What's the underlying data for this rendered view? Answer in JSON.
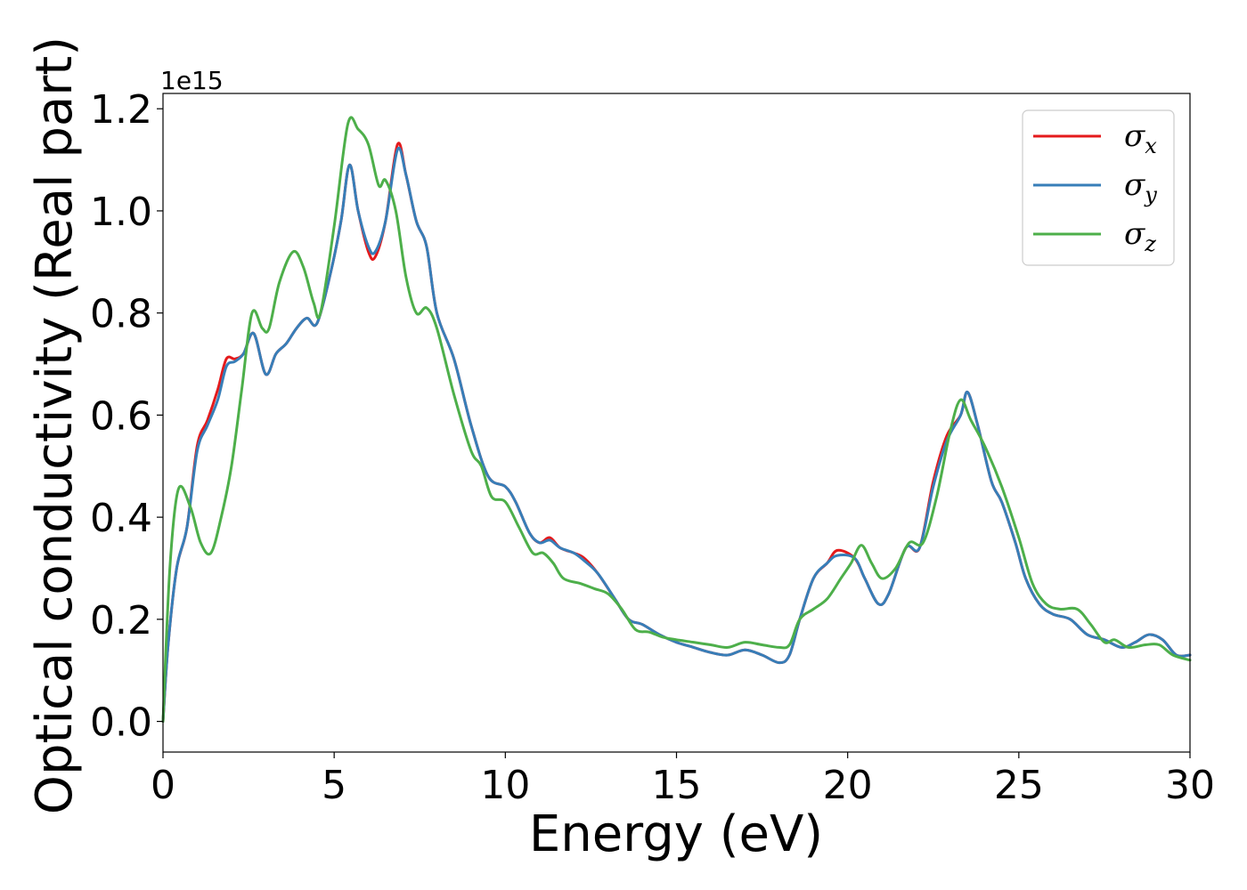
{
  "chart_data": {
    "type": "line",
    "xlabel": "Energy (eV)",
    "ylabel": "Optical conductivity (Real part)",
    "y_offset_text": "1e15",
    "xlim": [
      0,
      30
    ],
    "ylim": [
      -0.06,
      1.23
    ],
    "y_scale_factor": 1000000000000000.0,
    "xticks": [
      0,
      5,
      10,
      15,
      20,
      25,
      30
    ],
    "xtick_labels": [
      "0",
      "5",
      "10",
      "15",
      "20",
      "25",
      "30"
    ],
    "yticks": [
      0.0,
      0.2,
      0.4,
      0.6,
      0.8,
      1.0,
      1.2
    ],
    "ytick_labels": [
      "0.0",
      "0.2",
      "0.4",
      "0.6",
      "0.8",
      "1.0",
      "1.2"
    ],
    "grid": false,
    "legend_position": "top-right",
    "series": [
      {
        "name": "σx",
        "legend_base": "σ",
        "legend_sub": "x",
        "color": "#e41a1c",
        "points": [
          [
            0,
            0.0
          ],
          [
            0.15,
            0.15
          ],
          [
            0.4,
            0.3
          ],
          [
            0.7,
            0.38
          ],
          [
            1.0,
            0.54
          ],
          [
            1.3,
            0.59
          ],
          [
            1.6,
            0.65
          ],
          [
            1.85,
            0.71
          ],
          [
            2.1,
            0.71
          ],
          [
            2.35,
            0.72
          ],
          [
            2.65,
            0.76
          ],
          [
            3.0,
            0.68
          ],
          [
            3.3,
            0.72
          ],
          [
            3.6,
            0.74
          ],
          [
            3.9,
            0.77
          ],
          [
            4.2,
            0.79
          ],
          [
            4.5,
            0.78
          ],
          [
            4.9,
            0.88
          ],
          [
            5.2,
            0.98
          ],
          [
            5.45,
            1.09
          ],
          [
            5.7,
            1.0
          ],
          [
            6.0,
            0.92
          ],
          [
            6.2,
            0.91
          ],
          [
            6.5,
            0.98
          ],
          [
            6.85,
            1.13
          ],
          [
            7.1,
            1.07
          ],
          [
            7.4,
            0.98
          ],
          [
            7.7,
            0.93
          ],
          [
            8.0,
            0.8
          ],
          [
            8.5,
            0.71
          ],
          [
            9.0,
            0.58
          ],
          [
            9.5,
            0.48
          ],
          [
            10.0,
            0.46
          ],
          [
            10.3,
            0.43
          ],
          [
            10.7,
            0.37
          ],
          [
            11.0,
            0.35
          ],
          [
            11.3,
            0.36
          ],
          [
            11.6,
            0.34
          ],
          [
            12.0,
            0.33
          ],
          [
            12.3,
            0.32
          ],
          [
            12.7,
            0.29
          ],
          [
            13.2,
            0.24
          ],
          [
            13.6,
            0.2
          ],
          [
            14.0,
            0.19
          ],
          [
            14.5,
            0.17
          ],
          [
            15.0,
            0.155
          ],
          [
            15.5,
            0.145
          ],
          [
            16.0,
            0.135
          ],
          [
            16.5,
            0.13
          ],
          [
            17.0,
            0.14
          ],
          [
            17.5,
            0.13
          ],
          [
            18.0,
            0.115
          ],
          [
            18.3,
            0.13
          ],
          [
            18.6,
            0.2
          ],
          [
            19.0,
            0.28
          ],
          [
            19.4,
            0.31
          ],
          [
            19.7,
            0.335
          ],
          [
            20.2,
            0.32
          ],
          [
            20.5,
            0.28
          ],
          [
            20.9,
            0.23
          ],
          [
            21.2,
            0.25
          ],
          [
            21.7,
            0.34
          ],
          [
            22.1,
            0.34
          ],
          [
            22.5,
            0.47
          ],
          [
            22.9,
            0.56
          ],
          [
            23.3,
            0.6
          ],
          [
            23.5,
            0.645
          ],
          [
            23.8,
            0.58
          ],
          [
            24.2,
            0.47
          ],
          [
            24.5,
            0.43
          ],
          [
            24.9,
            0.35
          ],
          [
            25.2,
            0.28
          ],
          [
            25.6,
            0.23
          ],
          [
            26.0,
            0.21
          ],
          [
            26.5,
            0.2
          ],
          [
            27.0,
            0.17
          ],
          [
            27.5,
            0.16
          ],
          [
            28.0,
            0.145
          ],
          [
            28.4,
            0.155
          ],
          [
            28.8,
            0.17
          ],
          [
            29.2,
            0.16
          ],
          [
            29.6,
            0.13
          ],
          [
            30.0,
            0.13
          ]
        ]
      },
      {
        "name": "σy",
        "legend_base": "σ",
        "legend_sub": "y",
        "color": "#377eb8",
        "points": [
          [
            0,
            0.0
          ],
          [
            0.15,
            0.15
          ],
          [
            0.4,
            0.3
          ],
          [
            0.7,
            0.38
          ],
          [
            1.0,
            0.53
          ],
          [
            1.3,
            0.58
          ],
          [
            1.6,
            0.63
          ],
          [
            1.85,
            0.695
          ],
          [
            2.1,
            0.705
          ],
          [
            2.35,
            0.72
          ],
          [
            2.65,
            0.76
          ],
          [
            3.0,
            0.68
          ],
          [
            3.3,
            0.72
          ],
          [
            3.6,
            0.74
          ],
          [
            3.9,
            0.77
          ],
          [
            4.2,
            0.79
          ],
          [
            4.5,
            0.78
          ],
          [
            4.9,
            0.88
          ],
          [
            5.2,
            0.98
          ],
          [
            5.45,
            1.09
          ],
          [
            5.7,
            1.0
          ],
          [
            6.0,
            0.93
          ],
          [
            6.2,
            0.92
          ],
          [
            6.5,
            0.98
          ],
          [
            6.85,
            1.12
          ],
          [
            7.1,
            1.07
          ],
          [
            7.4,
            0.98
          ],
          [
            7.7,
            0.93
          ],
          [
            8.0,
            0.8
          ],
          [
            8.5,
            0.71
          ],
          [
            9.0,
            0.58
          ],
          [
            9.5,
            0.48
          ],
          [
            10.0,
            0.46
          ],
          [
            10.3,
            0.43
          ],
          [
            10.7,
            0.37
          ],
          [
            11.0,
            0.35
          ],
          [
            11.3,
            0.355
          ],
          [
            11.6,
            0.34
          ],
          [
            12.0,
            0.33
          ],
          [
            12.3,
            0.315
          ],
          [
            12.7,
            0.29
          ],
          [
            13.2,
            0.24
          ],
          [
            13.6,
            0.2
          ],
          [
            14.0,
            0.19
          ],
          [
            14.5,
            0.17
          ],
          [
            15.0,
            0.155
          ],
          [
            15.5,
            0.145
          ],
          [
            16.0,
            0.135
          ],
          [
            16.5,
            0.13
          ],
          [
            17.0,
            0.14
          ],
          [
            17.5,
            0.13
          ],
          [
            18.0,
            0.115
          ],
          [
            18.3,
            0.13
          ],
          [
            18.6,
            0.2
          ],
          [
            19.0,
            0.28
          ],
          [
            19.4,
            0.31
          ],
          [
            19.7,
            0.325
          ],
          [
            20.2,
            0.32
          ],
          [
            20.5,
            0.28
          ],
          [
            20.9,
            0.23
          ],
          [
            21.2,
            0.25
          ],
          [
            21.7,
            0.34
          ],
          [
            22.1,
            0.34
          ],
          [
            22.5,
            0.46
          ],
          [
            22.9,
            0.55
          ],
          [
            23.3,
            0.6
          ],
          [
            23.5,
            0.645
          ],
          [
            23.8,
            0.58
          ],
          [
            24.2,
            0.47
          ],
          [
            24.5,
            0.43
          ],
          [
            24.9,
            0.35
          ],
          [
            25.2,
            0.28
          ],
          [
            25.6,
            0.23
          ],
          [
            26.0,
            0.21
          ],
          [
            26.5,
            0.2
          ],
          [
            27.0,
            0.17
          ],
          [
            27.5,
            0.16
          ],
          [
            28.0,
            0.145
          ],
          [
            28.4,
            0.155
          ],
          [
            28.8,
            0.17
          ],
          [
            29.2,
            0.16
          ],
          [
            29.6,
            0.13
          ],
          [
            30.0,
            0.13
          ]
        ]
      },
      {
        "name": "σz",
        "legend_base": "σ",
        "legend_sub": "z",
        "color": "#4daf4a",
        "points": [
          [
            0,
            0.0
          ],
          [
            0.2,
            0.3
          ],
          [
            0.45,
            0.455
          ],
          [
            0.8,
            0.42
          ],
          [
            1.1,
            0.35
          ],
          [
            1.4,
            0.33
          ],
          [
            1.7,
            0.4
          ],
          [
            2.0,
            0.5
          ],
          [
            2.3,
            0.65
          ],
          [
            2.6,
            0.8
          ],
          [
            2.9,
            0.77
          ],
          [
            3.1,
            0.77
          ],
          [
            3.4,
            0.86
          ],
          [
            3.8,
            0.92
          ],
          [
            4.1,
            0.89
          ],
          [
            4.4,
            0.82
          ],
          [
            4.6,
            0.8
          ],
          [
            5.0,
            0.97
          ],
          [
            5.4,
            1.17
          ],
          [
            5.7,
            1.16
          ],
          [
            6.0,
            1.13
          ],
          [
            6.3,
            1.05
          ],
          [
            6.5,
            1.06
          ],
          [
            6.8,
            1.0
          ],
          [
            7.1,
            0.87
          ],
          [
            7.4,
            0.8
          ],
          [
            7.7,
            0.81
          ],
          [
            8.0,
            0.77
          ],
          [
            8.5,
            0.64
          ],
          [
            9.0,
            0.53
          ],
          [
            9.3,
            0.5
          ],
          [
            9.6,
            0.44
          ],
          [
            10.0,
            0.43
          ],
          [
            10.4,
            0.38
          ],
          [
            10.8,
            0.33
          ],
          [
            11.1,
            0.33
          ],
          [
            11.4,
            0.31
          ],
          [
            11.7,
            0.28
          ],
          [
            12.2,
            0.27
          ],
          [
            12.6,
            0.26
          ],
          [
            13.0,
            0.25
          ],
          [
            13.4,
            0.22
          ],
          [
            13.8,
            0.18
          ],
          [
            14.2,
            0.175
          ],
          [
            14.6,
            0.165
          ],
          [
            15.0,
            0.16
          ],
          [
            15.5,
            0.155
          ],
          [
            16.0,
            0.15
          ],
          [
            16.5,
            0.145
          ],
          [
            17.0,
            0.155
          ],
          [
            17.5,
            0.15
          ],
          [
            18.0,
            0.145
          ],
          [
            18.3,
            0.15
          ],
          [
            18.6,
            0.2
          ],
          [
            19.0,
            0.22
          ],
          [
            19.4,
            0.24
          ],
          [
            19.8,
            0.28
          ],
          [
            20.1,
            0.31
          ],
          [
            20.4,
            0.345
          ],
          [
            20.7,
            0.31
          ],
          [
            21.0,
            0.28
          ],
          [
            21.4,
            0.3
          ],
          [
            21.8,
            0.35
          ],
          [
            22.2,
            0.35
          ],
          [
            22.6,
            0.44
          ],
          [
            23.0,
            0.57
          ],
          [
            23.3,
            0.63
          ],
          [
            23.6,
            0.59
          ],
          [
            24.0,
            0.54
          ],
          [
            24.5,
            0.46
          ],
          [
            25.0,
            0.36
          ],
          [
            25.4,
            0.27
          ],
          [
            25.8,
            0.23
          ],
          [
            26.2,
            0.22
          ],
          [
            26.7,
            0.22
          ],
          [
            27.1,
            0.19
          ],
          [
            27.5,
            0.155
          ],
          [
            27.8,
            0.16
          ],
          [
            28.2,
            0.145
          ],
          [
            28.7,
            0.15
          ],
          [
            29.1,
            0.15
          ],
          [
            29.5,
            0.13
          ],
          [
            30.0,
            0.12
          ]
        ]
      }
    ]
  }
}
